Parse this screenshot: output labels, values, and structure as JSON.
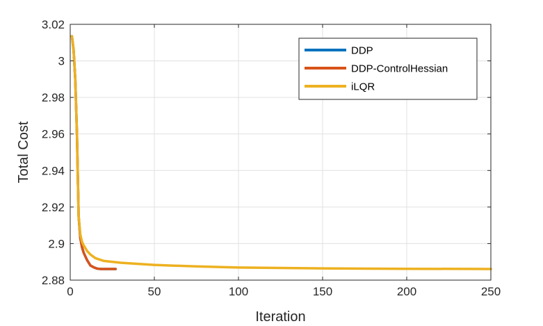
{
  "chart_data": {
    "type": "line",
    "xlabel": "Iteration",
    "ylabel": "Total Cost",
    "xlim": [
      0,
      250
    ],
    "ylim": [
      2.88,
      3.02
    ],
    "xticks": [
      0,
      50,
      100,
      150,
      200,
      250
    ],
    "xtick_labels": [
      "0",
      "50",
      "100",
      "150",
      "200",
      "250"
    ],
    "yticks": [
      2.88,
      2.9,
      2.92,
      2.94,
      2.96,
      2.98,
      3.0,
      3.02
    ],
    "ytick_labels": [
      "2.88",
      "2.9",
      "2.92",
      "2.94",
      "2.96",
      "2.98",
      "3",
      "3.02"
    ],
    "grid": true,
    "legend_position": "top-right",
    "series": [
      {
        "name": "DDP",
        "color": "#0072BD",
        "x": [
          1,
          2,
          3,
          4,
          5,
          6,
          7,
          8,
          10,
          12,
          14,
          16,
          18,
          20,
          22,
          24,
          26,
          27
        ],
        "y": [
          3.0135,
          3.006,
          2.99,
          2.96,
          2.915,
          2.903,
          2.898,
          2.895,
          2.891,
          2.888,
          2.887,
          2.8863,
          2.8861,
          2.8861,
          2.8861,
          2.8861,
          2.8861,
          2.8861
        ]
      },
      {
        "name": "DDP-ControlHessian",
        "color": "#D95319",
        "x": [
          1,
          2,
          3,
          4,
          5,
          6,
          7,
          8,
          10,
          12,
          14,
          16,
          18,
          20,
          22,
          24,
          26,
          27
        ],
        "y": [
          3.0135,
          3.006,
          2.99,
          2.96,
          2.915,
          2.903,
          2.898,
          2.895,
          2.891,
          2.888,
          2.887,
          2.8863,
          2.8861,
          2.8861,
          2.8861,
          2.8861,
          2.8861,
          2.8861
        ]
      },
      {
        "name": "iLQR",
        "color": "#EDB120",
        "x": [
          1,
          2,
          3,
          4,
          5,
          6,
          7,
          8,
          10,
          12,
          15,
          20,
          30,
          50,
          75,
          100,
          150,
          200,
          250
        ],
        "y": [
          3.0135,
          3.006,
          2.99,
          2.96,
          2.915,
          2.905,
          2.901,
          2.899,
          2.896,
          2.894,
          2.892,
          2.8905,
          2.8895,
          2.8883,
          2.8875,
          2.8869,
          2.8864,
          2.8862,
          2.8861
        ]
      }
    ]
  }
}
